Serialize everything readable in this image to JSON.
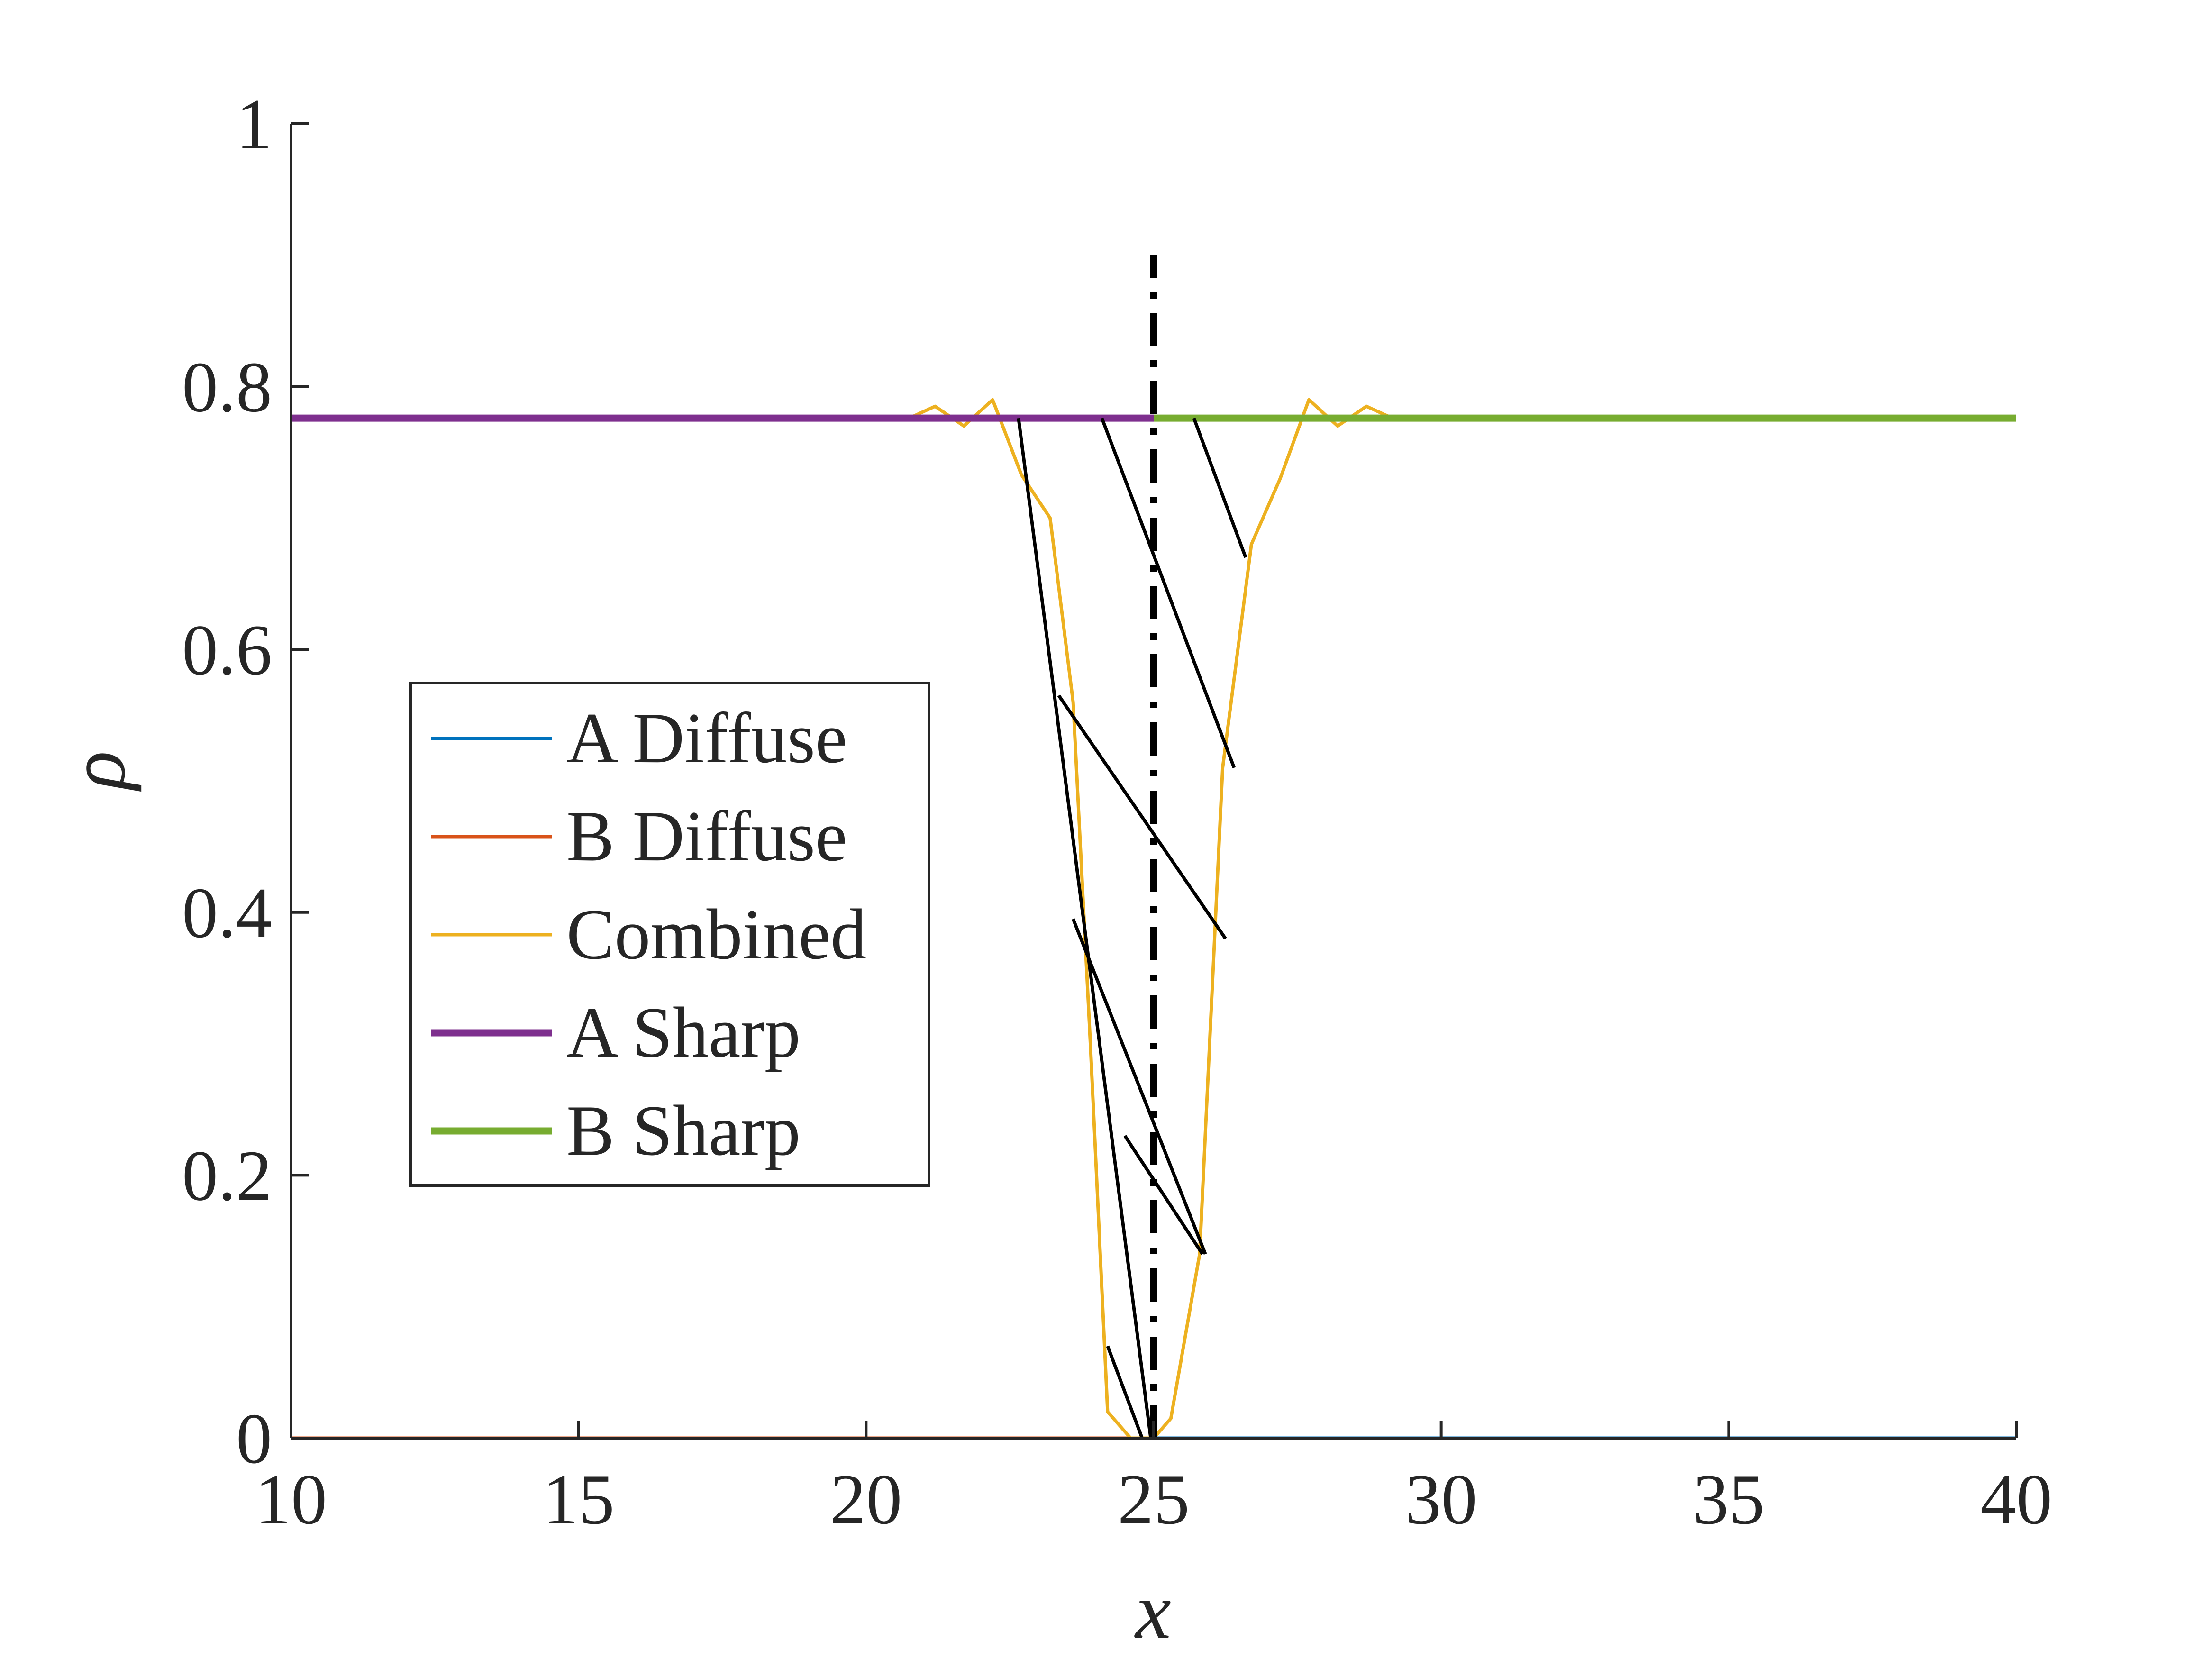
{
  "chart_data": {
    "type": "line",
    "title": "",
    "xlabel": "x",
    "ylabel": "ρ",
    "xlim": [
      10,
      40
    ],
    "ylim": [
      0,
      1
    ],
    "xticks": [
      10,
      15,
      20,
      25,
      30,
      35,
      40
    ],
    "yticks": [
      0,
      0.2,
      0.4,
      0.6,
      0.8,
      1
    ],
    "xtick_labels": [
      "10",
      "15",
      "20",
      "25",
      "30",
      "35",
      "40"
    ],
    "ytick_labels": [
      "0",
      "0.2",
      "0.4",
      "0.6",
      "0.8",
      "1"
    ],
    "grid": false,
    "legend_position": "center-left",
    "series": [
      {
        "name": "A Diffuse",
        "color": "#0072BD",
        "x": [
          10,
          24.6,
          25,
          25.4,
          26,
          40
        ],
        "y": [
          0,
          0,
          0,
          0,
          0,
          0
        ]
      },
      {
        "name": "B Diffuse",
        "color": "#D95319",
        "x": [
          10,
          24,
          24.6,
          25
        ],
        "y": [
          0,
          0,
          0,
          0
        ]
      },
      {
        "name": "Combined",
        "color": "#EDB120",
        "x": [
          10,
          20,
          20.7,
          21.2,
          21.7,
          22.2,
          22.7,
          23.2,
          23.6,
          23.9,
          24.2,
          24.6,
          25.0,
          25.3,
          25.8,
          26.2,
          26.7,
          27.2,
          27.7,
          28.2,
          28.7,
          29.2,
          30,
          40
        ],
        "y": [
          0.776,
          0.776,
          0.775,
          0.785,
          0.77,
          0.79,
          0.733,
          0.7,
          0.56,
          0.3,
          0.02,
          0.0,
          0.0,
          0.015,
          0.14,
          0.51,
          0.68,
          0.73,
          0.79,
          0.77,
          0.785,
          0.775,
          0.777,
          0.776
        ]
      },
      {
        "name": "A Sharp",
        "color": "#7E2F8E",
        "x": [
          10,
          25
        ],
        "y": [
          0.776,
          0.776
        ]
      },
      {
        "name": "B Sharp",
        "color": "#77AC30",
        "x": [
          25,
          40
        ],
        "y": [
          0.776,
          0.776
        ]
      }
    ],
    "interface_line": {
      "x": 25,
      "y": [
        0,
        0.9
      ],
      "style": "dash-dot",
      "color": "#000000"
    },
    "hatch_lines": [
      [
        [
          22.65,
          0.776
        ],
        [
          24.95,
          0.0
        ]
      ],
      [
        [
          23.35,
          0.565
        ],
        [
          26.25,
          0.38
        ]
      ],
      [
        [
          23.6,
          0.395
        ],
        [
          25.9,
          0.14
        ]
      ],
      [
        [
          24.1,
          0.776
        ],
        [
          26.4,
          0.51
        ]
      ],
      [
        [
          24.5,
          0.23
        ],
        [
          25.85,
          0.14
        ]
      ],
      [
        [
          24.2,
          0.07
        ],
        [
          24.8,
          0.0
        ]
      ],
      [
        [
          25.7,
          0.776
        ],
        [
          26.6,
          0.67
        ]
      ]
    ]
  }
}
